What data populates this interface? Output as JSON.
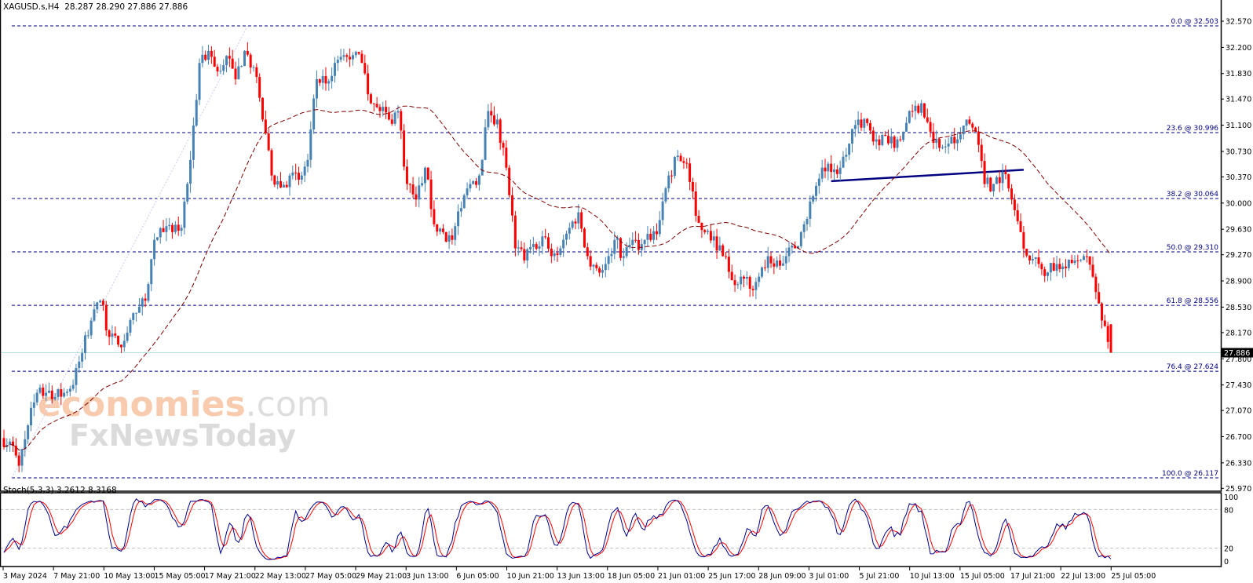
{
  "header": {
    "symbol": "XAGUSD.s,H4",
    "ohlc": "28.287 28.290 27.886 27.886"
  },
  "colors": {
    "bull": "#4682B4",
    "bear": "#FF0000",
    "fib_line": "#00008B",
    "moving_average": "#800000",
    "neckline": "#000080",
    "current_price_line": "#B0E0E6",
    "stoch_main": "#00008B",
    "stoch_signal": "#FF0000"
  },
  "price_axis": {
    "ticks": [
      "32.570",
      "32.200",
      "31.830",
      "31.470",
      "31.100",
      "30.730",
      "30.370",
      "30.000",
      "29.630",
      "29.270",
      "28.900",
      "28.530",
      "28.170",
      "27.800",
      "27.430",
      "27.070",
      "26.700",
      "26.330",
      "25.970"
    ],
    "current_price": "27.886"
  },
  "time_axis": {
    "labels": [
      "3 May 2024",
      "7 May 21:00",
      "10 May 13:00",
      "15 May 05:00",
      "17 May 21:00",
      "22 May 13:00",
      "27 May 05:00",
      "29 May 21:00",
      "3 Jun 13:00",
      "6 Jun 05:00",
      "10 Jun 21:00",
      "13 Jun 13:00",
      "18 Jun 05:00",
      "21 Jun 01:00",
      "25 Jun 17:00",
      "28 Jun 09:00",
      "3 Jul 01:00",
      "5 Jul 21:00",
      "10 Jul 13:00",
      "15 Jul 05:00",
      "17 Jul 21:00",
      "22 Jul 13:00",
      "25 Jul 05:00"
    ]
  },
  "fibonacci": [
    {
      "label": "0.0 @ 32.503",
      "price": 32.503
    },
    {
      "label": "23.6 @ 30.996",
      "price": 30.996
    },
    {
      "label": "38.2 @ 30.064",
      "price": 30.064
    },
    {
      "label": "50.0 @ 29.310",
      "price": 29.31
    },
    {
      "label": "61.8 @ 28.556",
      "price": 28.556
    },
    {
      "label": "76.4 @ 27.624",
      "price": 27.624
    },
    {
      "label": "100.0 @ 26.117",
      "price": 26.117
    }
  ],
  "neckline": {
    "start_price": 30.31,
    "end_price": 30.47
  },
  "stochastic": {
    "label": "Stoch(5,3,3) 3.2612 8.3168",
    "main": 3.2612,
    "signal": 8.3168,
    "ticks": [
      "100",
      "80",
      "20",
      "0"
    ],
    "levels": [
      80,
      20
    ]
  },
  "watermark": {
    "line1": "economies",
    "line1_suffix": ".com",
    "line2": "FxNewsToday"
  },
  "chart_data": {
    "type": "candlestick",
    "symbol": "XAGUSD.s",
    "timeframe": "H4",
    "ylim": [
      25.97,
      32.57
    ],
    "grid": false,
    "x_start": "3 May 2024",
    "x_end": "25 Jul 05:00",
    "approx_closes": [
      26.63,
      26.29,
      26.86,
      27.32,
      27.32,
      27.26,
      27.32,
      27.43,
      27.88,
      28.34,
      28.62,
      28.11,
      28.0,
      28.17,
      28.45,
      28.62,
      29.48,
      29.59,
      29.59,
      29.65,
      30.61,
      31.98,
      32.15,
      31.86,
      32.08,
      31.75,
      32.15,
      31.92,
      31.18,
      30.39,
      30.22,
      30.39,
      30.33,
      30.61,
      31.75,
      31.69,
      31.98,
      32.09,
      32.09,
      31.98,
      31.41,
      31.3,
      31.18,
      31.3,
      30.27,
      30.05,
      30.5,
      29.7,
      29.59,
      29.48,
      29.93,
      30.27,
      30.39,
      31.3,
      31.18,
      30.5,
      29.36,
      29.19,
      29.42,
      29.53,
      29.25,
      29.36,
      29.65,
      29.87,
      29.25,
      29.08,
      29.14,
      29.48,
      29.25,
      29.48,
      29.42,
      29.48,
      29.76,
      30.39,
      30.67,
      30.56,
      29.82,
      29.59,
      29.53,
      29.25,
      28.91,
      28.96,
      28.79,
      28.96,
      29.25,
      29.19,
      29.25,
      29.36,
      29.7,
      30.1,
      30.5,
      30.44,
      30.5,
      30.84,
      31.18,
      31.13,
      30.9,
      30.95,
      30.78,
      31.01,
      31.3,
      31.41,
      31.01,
      30.78,
      30.84,
      30.9,
      31.18,
      31.01,
      30.27,
      30.27,
      30.44,
      30.05,
      29.59,
      29.19,
      29.14,
      29.02,
      29.14,
      29.08,
      29.19,
      29.25,
      28.96,
      28.34,
      27.886
    ],
    "last": {
      "open": 28.287,
      "high": 28.29,
      "low": 27.886,
      "close": 27.886
    }
  }
}
